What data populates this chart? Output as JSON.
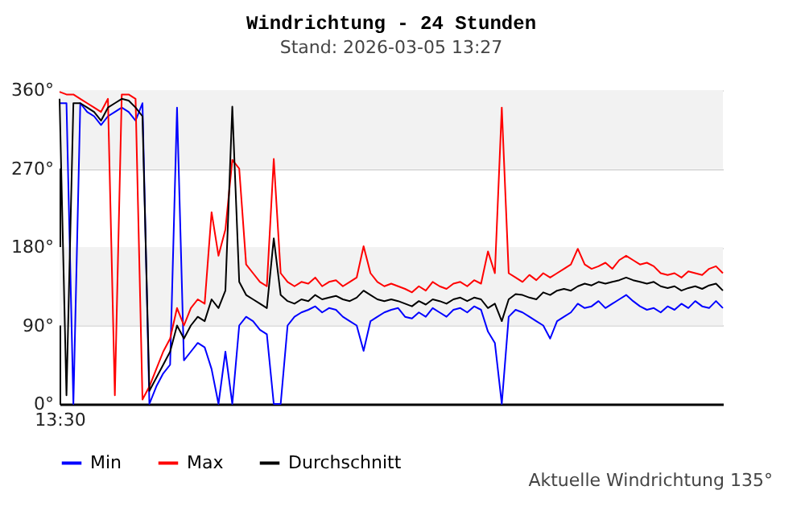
{
  "chart_data": {
    "type": "line",
    "title": "Windrichtung - 24 Stunden",
    "subtitle": "Stand: 2026-03-05 13:27",
    "categories": [
      "13:30",
      null,
      null,
      null,
      null,
      null,
      null,
      null,
      null,
      null,
      null,
      null,
      null,
      null,
      null,
      null,
      null,
      null,
      null,
      null,
      null,
      null,
      null,
      null,
      null,
      null,
      null,
      null,
      null,
      null,
      null,
      null,
      null,
      null,
      null,
      null,
      null,
      null,
      null,
      null,
      null,
      null,
      null,
      null,
      null,
      null,
      null,
      null,
      null,
      null,
      null,
      null,
      null,
      null,
      null,
      null,
      null,
      null,
      null,
      null,
      null,
      null,
      null,
      null,
      null,
      null,
      null,
      null,
      null,
      null,
      null,
      null,
      null,
      null,
      null,
      null,
      null,
      null,
      null,
      null,
      null,
      null,
      null,
      null,
      null,
      null,
      null,
      null,
      null,
      null,
      null,
      null,
      null,
      null,
      null,
      null,
      null
    ],
    "series": [
      {
        "name": "Min",
        "color": "#0000ff",
        "values": [
          345,
          345,
          0,
          345,
          335,
          330,
          320,
          330,
          335,
          340,
          335,
          325,
          345,
          0,
          20,
          35,
          45,
          340,
          50,
          60,
          70,
          65,
          40,
          0,
          60,
          0,
          90,
          100,
          95,
          85,
          80,
          0,
          0,
          90,
          100,
          105,
          108,
          112,
          105,
          110,
          108,
          100,
          95,
          90,
          61,
          95,
          100,
          105,
          108,
          110,
          100,
          98,
          105,
          100,
          110,
          105,
          100,
          108,
          110,
          105,
          112,
          108,
          83,
          70,
          0,
          100,
          108,
          105,
          100,
          95,
          90,
          75,
          95,
          100,
          105,
          115,
          110,
          112,
          118,
          110,
          115,
          120,
          125,
          118,
          112,
          108,
          110,
          105,
          112,
          108,
          115,
          110,
          118,
          112,
          110,
          118,
          110
        ]
      },
      {
        "name": "Max",
        "color": "#ff0000",
        "values": [
          358,
          355,
          355,
          350,
          345,
          340,
          335,
          350,
          10,
          355,
          355,
          350,
          5,
          20,
          40,
          60,
          75,
          110,
          90,
          110,
          120,
          115,
          220,
          170,
          200,
          280,
          270,
          160,
          150,
          140,
          135,
          281,
          150,
          140,
          135,
          140,
          138,
          145,
          135,
          140,
          142,
          135,
          140,
          145,
          181,
          150,
          140,
          135,
          138,
          135,
          132,
          128,
          135,
          130,
          140,
          135,
          132,
          138,
          140,
          135,
          142,
          138,
          175,
          150,
          340,
          150,
          145,
          140,
          148,
          142,
          150,
          145,
          150,
          155,
          160,
          178,
          160,
          155,
          158,
          162,
          155,
          165,
          170,
          165,
          160,
          162,
          158,
          150,
          148,
          150,
          145,
          152,
          150,
          148,
          155,
          158,
          150
        ]
      },
      {
        "name": "Durchschnitt",
        "color": "#000000",
        "values": [
          350,
          10,
          345,
          345,
          340,
          335,
          325,
          340,
          345,
          350,
          348,
          340,
          330,
          15,
          30,
          45,
          60,
          90,
          75,
          90,
          100,
          95,
          120,
          110,
          130,
          341,
          140,
          125,
          120,
          115,
          110,
          190,
          125,
          118,
          115,
          120,
          118,
          125,
          120,
          122,
          124,
          120,
          118,
          122,
          130,
          125,
          120,
          118,
          120,
          118,
          115,
          112,
          118,
          114,
          120,
          118,
          115,
          120,
          122,
          118,
          122,
          120,
          110,
          115,
          95,
          120,
          126,
          125,
          122,
          120,
          128,
          125,
          130,
          132,
          130,
          135,
          138,
          136,
          140,
          138,
          140,
          142,
          145,
          142,
          140,
          138,
          140,
          135,
          133,
          135,
          130,
          133,
          135,
          132,
          136,
          138,
          130
        ]
      }
    ],
    "ylim": [
      0,
      360
    ],
    "yticks": [
      {
        "value": 0,
        "label": "0°"
      },
      {
        "value": 90,
        "label": "90°"
      },
      {
        "value": 180,
        "label": "180°"
      },
      {
        "value": 270,
        "label": "270°"
      },
      {
        "value": 360,
        "label": "360°"
      }
    ],
    "bands": [
      {
        "axis": "y",
        "from": 90,
        "to": 180,
        "color": "#f2f2f2"
      },
      {
        "axis": "y",
        "from": 270,
        "to": 360,
        "color": "#f2f2f2"
      }
    ],
    "grid": "y",
    "legend": "bottom",
    "annotations": [
      "Aktuelle Windrichtung 135°"
    ]
  }
}
